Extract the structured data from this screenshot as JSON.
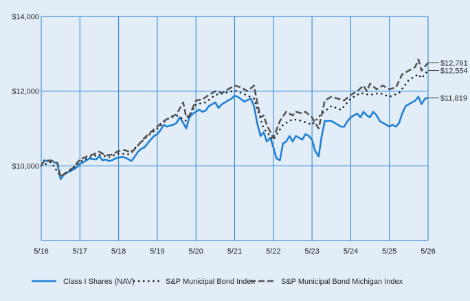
{
  "chart_data": {
    "type": "line",
    "title": "",
    "xlabel": "",
    "ylabel": "",
    "x_tick_labels": [
      "5/16",
      "5/17",
      "5/18",
      "5/19",
      "5/20",
      "5/21",
      "5/22",
      "5/23",
      "5/24",
      "5/25",
      "5/26"
    ],
    "y_tick_labels": [
      "$10,000",
      "$12,000",
      "$14,000"
    ],
    "y_ticks": [
      10000,
      12000,
      14000
    ],
    "ylim": [
      8000,
      14000
    ],
    "xlim": [
      0,
      10
    ],
    "grid": true,
    "legend_position": "bottom",
    "series": [
      {
        "name": "Class I Shares (NAV)",
        "style": "solid",
        "color": "#1f7fd4",
        "end_label": "$11,819",
        "end_value": 11819,
        "points": [
          [
            0,
            10000
          ],
          [
            0.08,
            10150
          ],
          [
            0.17,
            10120
          ],
          [
            0.25,
            10150
          ],
          [
            0.33,
            10100
          ],
          [
            0.42,
            10060
          ],
          [
            0.5,
            9640
          ],
          [
            0.58,
            9760
          ],
          [
            0.67,
            9820
          ],
          [
            0.75,
            9860
          ],
          [
            0.83,
            9900
          ],
          [
            0.92,
            9960
          ],
          [
            1,
            10050
          ],
          [
            1.08,
            10090
          ],
          [
            1.17,
            10150
          ],
          [
            1.25,
            10200
          ],
          [
            1.33,
            10180
          ],
          [
            1.42,
            10170
          ],
          [
            1.5,
            10260
          ],
          [
            1.58,
            10150
          ],
          [
            1.67,
            10170
          ],
          [
            1.75,
            10130
          ],
          [
            1.83,
            10150
          ],
          [
            1.92,
            10200
          ],
          [
            2,
            10220
          ],
          [
            2.08,
            10240
          ],
          [
            2.17,
            10220
          ],
          [
            2.25,
            10180
          ],
          [
            2.33,
            10130
          ],
          [
            2.42,
            10250
          ],
          [
            2.5,
            10380
          ],
          [
            2.58,
            10450
          ],
          [
            2.67,
            10500
          ],
          [
            2.75,
            10600
          ],
          [
            2.83,
            10700
          ],
          [
            2.92,
            10800
          ],
          [
            3,
            10850
          ],
          [
            3.08,
            10950
          ],
          [
            3.17,
            11100
          ],
          [
            3.25,
            11050
          ],
          [
            3.33,
            11080
          ],
          [
            3.42,
            11100
          ],
          [
            3.5,
            11150
          ],
          [
            3.58,
            11300
          ],
          [
            3.67,
            11150
          ],
          [
            3.75,
            11000
          ],
          [
            3.83,
            11300
          ],
          [
            3.92,
            11400
          ],
          [
            4,
            11450
          ],
          [
            4.08,
            11500
          ],
          [
            4.17,
            11450
          ],
          [
            4.25,
            11480
          ],
          [
            4.33,
            11600
          ],
          [
            4.42,
            11650
          ],
          [
            4.5,
            11700
          ],
          [
            4.58,
            11550
          ],
          [
            4.67,
            11650
          ],
          [
            4.75,
            11700
          ],
          [
            4.83,
            11750
          ],
          [
            4.92,
            11800
          ],
          [
            5,
            11880
          ],
          [
            5.08,
            11850
          ],
          [
            5.17,
            11780
          ],
          [
            5.25,
            11720
          ],
          [
            5.33,
            11760
          ],
          [
            5.42,
            11800
          ],
          [
            5.5,
            11600
          ],
          [
            5.58,
            11150
          ],
          [
            5.67,
            10800
          ],
          [
            5.75,
            10900
          ],
          [
            5.83,
            10650
          ],
          [
            5.92,
            10750
          ],
          [
            6,
            10500
          ],
          [
            6.08,
            10200
          ],
          [
            6.17,
            10150
          ],
          [
            6.25,
            10600
          ],
          [
            6.33,
            10650
          ],
          [
            6.42,
            10800
          ],
          [
            6.5,
            10650
          ],
          [
            6.58,
            10800
          ],
          [
            6.67,
            10750
          ],
          [
            6.75,
            10700
          ],
          [
            6.83,
            10850
          ],
          [
            6.92,
            10800
          ],
          [
            7,
            10700
          ],
          [
            7.08,
            10400
          ],
          [
            7.17,
            10250
          ],
          [
            7.25,
            10800
          ],
          [
            7.33,
            11200
          ],
          [
            7.42,
            11200
          ],
          [
            7.5,
            11200
          ],
          [
            7.58,
            11150
          ],
          [
            7.67,
            11100
          ],
          [
            7.75,
            11050
          ],
          [
            7.83,
            11050
          ],
          [
            7.92,
            11200
          ],
          [
            8,
            11300
          ],
          [
            8.08,
            11350
          ],
          [
            8.17,
            11400
          ],
          [
            8.25,
            11300
          ],
          [
            8.33,
            11450
          ],
          [
            8.42,
            11350
          ],
          [
            8.5,
            11300
          ],
          [
            8.58,
            11450
          ],
          [
            8.67,
            11350
          ],
          [
            8.75,
            11200
          ],
          [
            8.83,
            11150
          ],
          [
            8.92,
            11100
          ],
          [
            9,
            11050
          ],
          [
            9.08,
            11100
          ],
          [
            9.17,
            11050
          ],
          [
            9.25,
            11150
          ],
          [
            9.33,
            11400
          ],
          [
            9.42,
            11600
          ],
          [
            9.5,
            11650
          ],
          [
            9.58,
            11700
          ],
          [
            9.67,
            11750
          ],
          [
            9.75,
            11850
          ],
          [
            9.83,
            11650
          ],
          [
            9.92,
            11800
          ],
          [
            10,
            11819
          ]
        ]
      },
      {
        "name": "S&P Municipal Bond Index",
        "style": "dotted",
        "color": "#1a1a1a",
        "end_label": "$12,554",
        "end_value": 12554,
        "points": [
          [
            0,
            10000
          ],
          [
            0.25,
            10100
          ],
          [
            0.5,
            9720
          ],
          [
            0.75,
            9870
          ],
          [
            1,
            10110
          ],
          [
            1.25,
            10230
          ],
          [
            1.5,
            10300
          ],
          [
            1.75,
            10230
          ],
          [
            2,
            10330
          ],
          [
            2.25,
            10310
          ],
          [
            2.5,
            10550
          ],
          [
            2.75,
            10800
          ],
          [
            3,
            11000
          ],
          [
            3.25,
            11250
          ],
          [
            3.5,
            11350
          ],
          [
            3.75,
            11200
          ],
          [
            4,
            11650
          ],
          [
            4.25,
            11700
          ],
          [
            4.5,
            11900
          ],
          [
            4.75,
            11950
          ],
          [
            5,
            12020
          ],
          [
            5.25,
            11920
          ],
          [
            5.5,
            11800
          ],
          [
            5.75,
            11000
          ],
          [
            6,
            10700
          ],
          [
            6.25,
            11100
          ],
          [
            6.5,
            11250
          ],
          [
            6.75,
            11200
          ],
          [
            7,
            11100
          ],
          [
            7.25,
            11400
          ],
          [
            7.5,
            11600
          ],
          [
            7.75,
            11500
          ],
          [
            8,
            11800
          ],
          [
            8.25,
            11950
          ],
          [
            8.5,
            11900
          ],
          [
            8.75,
            11950
          ],
          [
            9,
            11850
          ],
          [
            9.25,
            11950
          ],
          [
            9.5,
            12300
          ],
          [
            9.75,
            12450
          ],
          [
            9.83,
            12350
          ],
          [
            10,
            12554
          ]
        ]
      },
      {
        "name": "S&P Municipal Bond Michigan Index",
        "style": "dashed",
        "color": "#555555",
        "end_label": "$12,761",
        "end_value": 12761,
        "points": [
          [
            0,
            10000
          ],
          [
            0.08,
            10140
          ],
          [
            0.25,
            10140
          ],
          [
            0.42,
            10080
          ],
          [
            0.5,
            9700
          ],
          [
            0.67,
            9850
          ],
          [
            0.83,
            9950
          ],
          [
            1,
            10170
          ],
          [
            1.17,
            10250
          ],
          [
            1.33,
            10300
          ],
          [
            1.5,
            10380
          ],
          [
            1.67,
            10280
          ],
          [
            1.83,
            10300
          ],
          [
            2,
            10400
          ],
          [
            2.17,
            10420
          ],
          [
            2.33,
            10350
          ],
          [
            2.5,
            10550
          ],
          [
            2.67,
            10750
          ],
          [
            2.83,
            10900
          ],
          [
            3,
            11050
          ],
          [
            3.17,
            11200
          ],
          [
            3.33,
            11300
          ],
          [
            3.5,
            11380
          ],
          [
            3.67,
            11700
          ],
          [
            3.75,
            11300
          ],
          [
            3.83,
            11350
          ],
          [
            4,
            11750
          ],
          [
            4.17,
            11780
          ],
          [
            4.33,
            11900
          ],
          [
            4.5,
            12000
          ],
          [
            4.67,
            11950
          ],
          [
            4.83,
            12050
          ],
          [
            5,
            12150
          ],
          [
            5.17,
            12100
          ],
          [
            5.33,
            12000
          ],
          [
            5.5,
            12150
          ],
          [
            5.58,
            11700
          ],
          [
            5.67,
            11300
          ],
          [
            5.75,
            11350
          ],
          [
            5.83,
            11100
          ],
          [
            6,
            10750
          ],
          [
            6.17,
            11200
          ],
          [
            6.33,
            11450
          ],
          [
            6.5,
            11350
          ],
          [
            6.58,
            11450
          ],
          [
            6.75,
            11400
          ],
          [
            6.83,
            11450
          ],
          [
            7,
            11300
          ],
          [
            7.17,
            11000
          ],
          [
            7.33,
            11750
          ],
          [
            7.5,
            11850
          ],
          [
            7.67,
            11800
          ],
          [
            7.83,
            11750
          ],
          [
            8,
            11900
          ],
          [
            8.17,
            12000
          ],
          [
            8.33,
            12150
          ],
          [
            8.42,
            12000
          ],
          [
            8.5,
            12200
          ],
          [
            8.67,
            12050
          ],
          [
            8.83,
            12150
          ],
          [
            9,
            12050
          ],
          [
            9.17,
            12100
          ],
          [
            9.33,
            12450
          ],
          [
            9.5,
            12550
          ],
          [
            9.67,
            12650
          ],
          [
            9.75,
            12850
          ],
          [
            9.83,
            12550
          ],
          [
            10,
            12761
          ]
        ]
      }
    ]
  }
}
